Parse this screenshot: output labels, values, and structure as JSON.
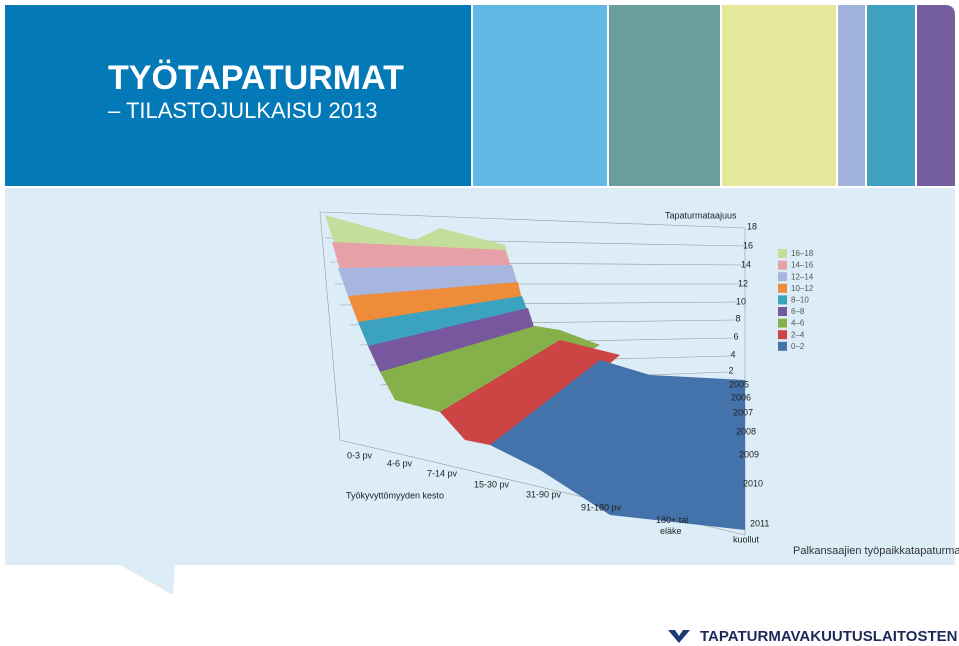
{
  "header": {
    "title": "TYÖTAPATURMAT",
    "subtitle": "– TILASTOJULKAISU 2013"
  },
  "chart": {
    "z_axis_label": "Tapaturmataajuus",
    "z_ticks": [
      "18",
      "16",
      "14",
      "12",
      "10",
      "8",
      "6",
      "4",
      "2"
    ],
    "years": [
      "2005",
      "2006",
      "2007",
      "2008",
      "2009",
      "2010",
      "2011"
    ],
    "x_axis_label": "Työkyvyttömyyden kesto",
    "categories": [
      "0-3 pv",
      "4-6 pv",
      "7-14 pv",
      "15-30 pv",
      "31-90 pv",
      "91-180 pv",
      "180+ tai eläke",
      "kuollut"
    ],
    "legend": [
      "16–18",
      "14–16",
      "12–14",
      "10–12",
      "8–10",
      "6–8",
      "4–6",
      "2–4",
      "0–2"
    ],
    "caption": "Palkansaajien työpaikkatapaturmat"
  },
  "footer": {
    "organization": "TAPATURMAVAKUUTUSLAITOSTEN LIITTO"
  }
}
